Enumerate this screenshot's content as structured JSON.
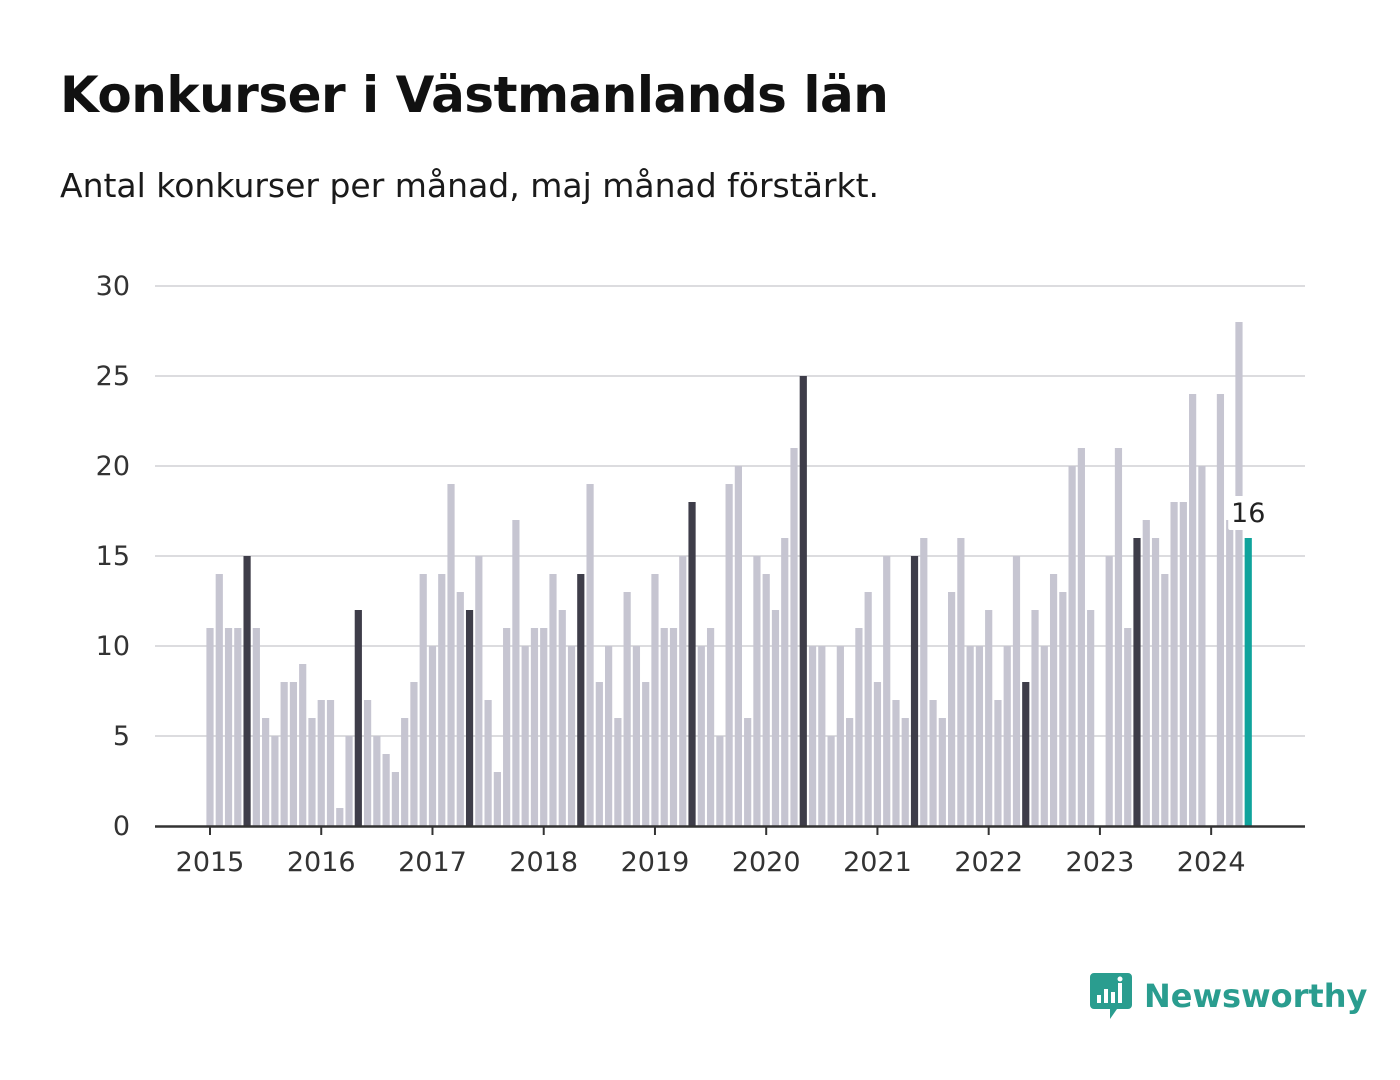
{
  "chart_data": {
    "type": "bar",
    "title": "Konkurser i Västmanlands län",
    "subtitle": "Antal konkurser per månad, maj månad förstärkt.",
    "xlabel": "",
    "ylabel": "",
    "ylim": [
      0,
      30
    ],
    "yticks": [
      "0",
      "5",
      "10",
      "15",
      "20",
      "25",
      "30"
    ],
    "year_labels": [
      "2015",
      "2016",
      "2017",
      "2018",
      "2019",
      "2020",
      "2021",
      "2022",
      "2023",
      "2024"
    ],
    "start": "2015-01",
    "months_per_year": 12,
    "highlight_month": "maj",
    "grid": true,
    "values": [
      11,
      14,
      11,
      11,
      15,
      11,
      6,
      5,
      8,
      8,
      9,
      6,
      7,
      7,
      1,
      5,
      12,
      7,
      5,
      4,
      3,
      6,
      8,
      14,
      10,
      14,
      19,
      13,
      12,
      15,
      7,
      3,
      11,
      17,
      10,
      11,
      11,
      14,
      12,
      10,
      14,
      19,
      8,
      10,
      6,
      13,
      10,
      8,
      14,
      11,
      11,
      15,
      18,
      10,
      11,
      5,
      19,
      20,
      6,
      15,
      14,
      12,
      16,
      21,
      25,
      10,
      10,
      5,
      10,
      6,
      11,
      13,
      8,
      15,
      7,
      6,
      15,
      16,
      7,
      6,
      13,
      16,
      10,
      10,
      12,
      7,
      10,
      15,
      8,
      12,
      10,
      14,
      13,
      20,
      21,
      12,
      0,
      15,
      21,
      11,
      16,
      17,
      16,
      14,
      18,
      18,
      24,
      20,
      0,
      24,
      17,
      28,
      16
    ],
    "last_value_label": "16",
    "colors": {
      "bar": "#c6c5d1",
      "highlight": "#3e3d49",
      "latest": "#10a39c",
      "grid": "#dcdcdf",
      "axis": "#333333"
    }
  },
  "brand": {
    "name": "Newsworthy",
    "icon": "newsworthy-logo-icon",
    "color": "#2a9d8f"
  }
}
